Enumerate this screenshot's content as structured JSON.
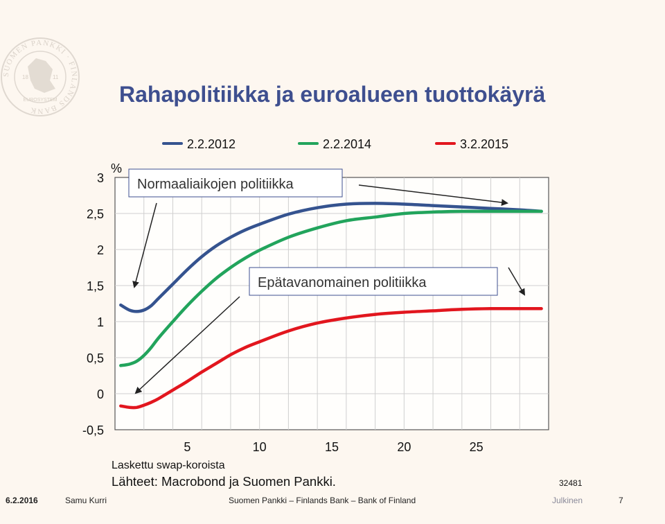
{
  "title": "Rahapolitiikka ja euroalueen tuottokäyrä",
  "colors": {
    "title": "#3e4f8f",
    "s1": "#35538f",
    "s2": "#22a45c",
    "s3": "#e2161e",
    "annotation_arrow": "#222222"
  },
  "annotations": {
    "normal": "Normaaliaikojen politiikka",
    "unconventional": "Epätavanomainen politiikka"
  },
  "notes": {
    "line1": "Laskettu swap-koroista",
    "line2": "Lähteet: Macrobond ja Suomen Pankki.",
    "code": "32481"
  },
  "logo": {
    "text_ring": "SUOMEN PANKKI · FINLANDS BANK",
    "inner": "EUROSYSTEM",
    "years": [
      "18",
      "11"
    ]
  },
  "footer": {
    "date": "6.2.2016",
    "author": "Samu Kurri",
    "org": "Suomen Pankki – Finlands Bank – Bank of Finland",
    "classification": "Julkinen",
    "page": "7"
  },
  "chart_data": {
    "type": "line",
    "title": "",
    "ylabel": "%",
    "xlabel": "",
    "xlim": [
      0,
      30
    ],
    "ylim": [
      -0.5,
      3
    ],
    "x_ticks": [
      5,
      10,
      15,
      20,
      25
    ],
    "y_ticks": [
      -0.5,
      0,
      0.5,
      1,
      1.5,
      2,
      2.5,
      3
    ],
    "y_tick_labels": [
      "-0,5",
      "0",
      "0,5",
      "1",
      "1,5",
      "2",
      "2,5",
      "3"
    ],
    "grid": true,
    "legend_position": "top",
    "x": [
      0.4,
      1,
      1.5,
      2,
      2.5,
      3,
      4,
      5,
      6,
      7,
      8,
      9,
      10,
      12,
      14,
      16,
      18,
      20,
      22,
      24,
      26,
      28,
      29.5
    ],
    "series": [
      {
        "name": "2.2.2012",
        "color": "#35538f",
        "values": [
          1.23,
          1.16,
          1.14,
          1.16,
          1.22,
          1.32,
          1.52,
          1.72,
          1.9,
          2.05,
          2.17,
          2.27,
          2.35,
          2.49,
          2.58,
          2.63,
          2.64,
          2.63,
          2.61,
          2.59,
          2.57,
          2.55,
          2.53
        ]
      },
      {
        "name": "2.2.2014",
        "color": "#22a45c",
        "values": [
          0.39,
          0.41,
          0.45,
          0.53,
          0.64,
          0.77,
          1.0,
          1.22,
          1.42,
          1.6,
          1.75,
          1.88,
          1.99,
          2.17,
          2.3,
          2.4,
          2.45,
          2.5,
          2.52,
          2.53,
          2.53,
          2.53,
          2.53
        ]
      },
      {
        "name": "3.2.2015",
        "color": "#e2161e",
        "values": [
          -0.17,
          -0.19,
          -0.19,
          -0.16,
          -0.12,
          -0.07,
          0.05,
          0.17,
          0.3,
          0.42,
          0.54,
          0.64,
          0.72,
          0.87,
          0.98,
          1.05,
          1.1,
          1.13,
          1.15,
          1.17,
          1.18,
          1.18,
          1.18
        ]
      }
    ]
  }
}
